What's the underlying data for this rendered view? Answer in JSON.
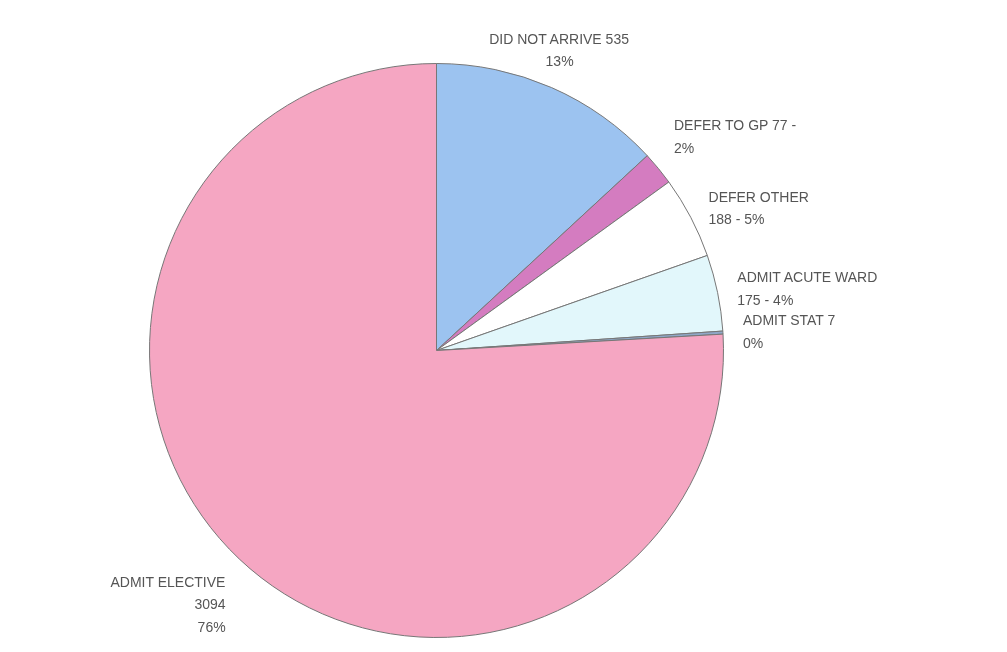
{
  "chart_data": {
    "type": "pie",
    "categories": [
      "DID NOT ARRIVE",
      "DEFER TO GP",
      "DEFER OTHER",
      "ADMIT ACUTE WARD",
      "ADMIT STAT",
      "ADMIT ELECTIVE"
    ],
    "values": [
      535,
      77,
      188,
      175,
      7,
      3094
    ],
    "colors": [
      "#9cc3f0",
      "#d47cc0",
      "#ffffff",
      "#e2f7fb",
      "#8fa8c8",
      "#f5a6c2"
    ],
    "value_labels": [
      "535\n13%",
      "  77 -\n2%",
      "\n188 - 5%",
      "\n175 - 4%",
      "  7\n0%",
      "\n3094\n76%"
    ],
    "legend": false
  }
}
